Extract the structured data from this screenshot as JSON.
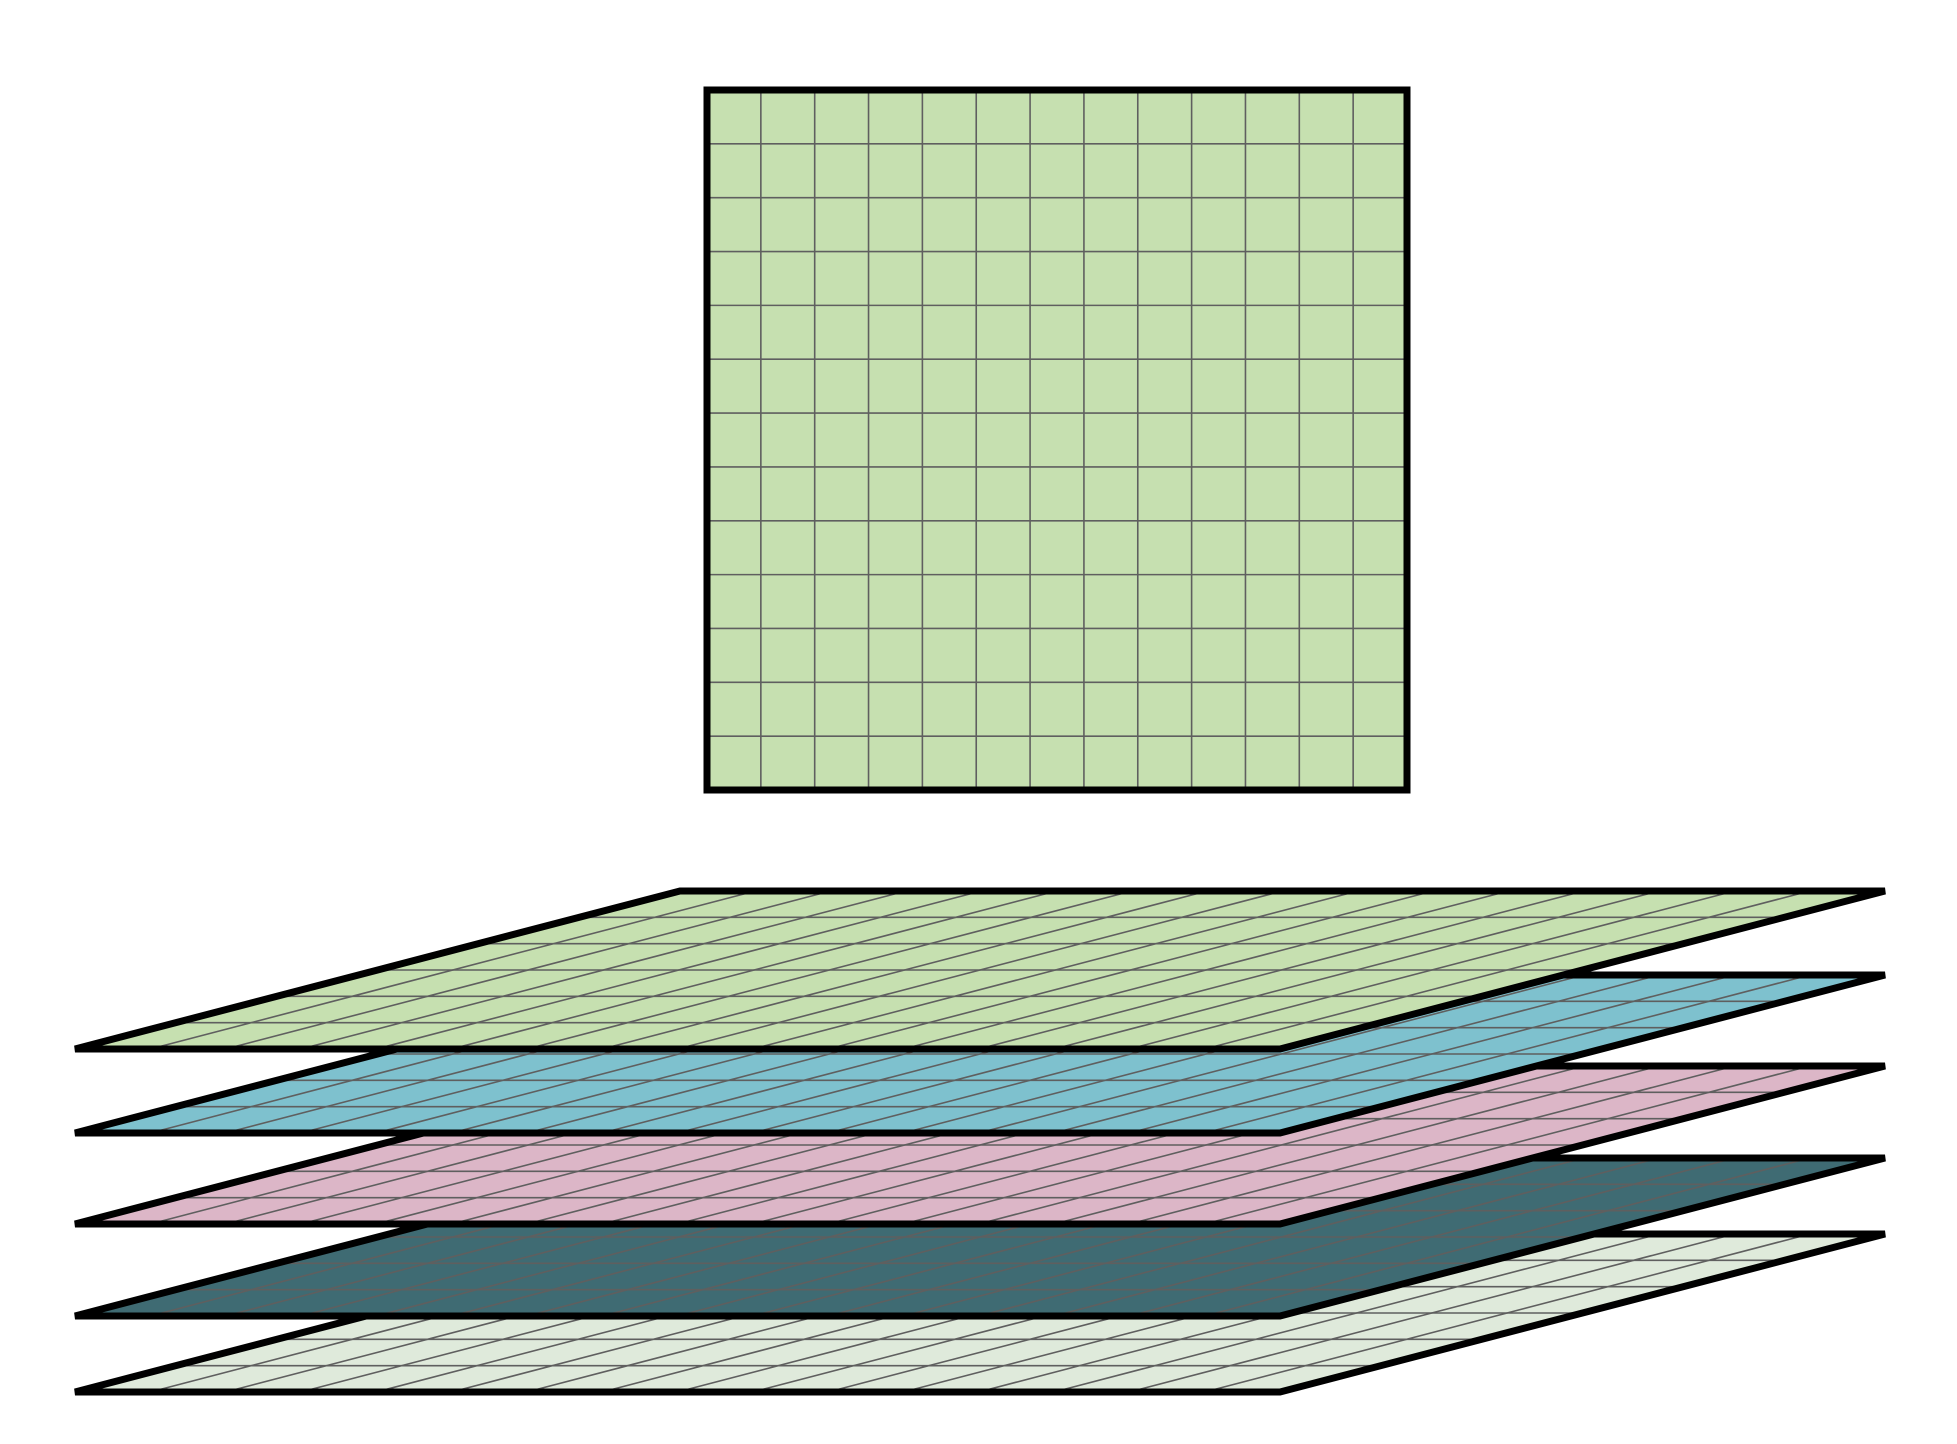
{
  "diagram": {
    "top_grid": {
      "fill": "#c6e0b0",
      "rows": 13,
      "cols": 13
    },
    "layers": [
      {
        "fill": "#dfeadb",
        "rows": 6,
        "cols": 16
      },
      {
        "fill": "#3f6b73",
        "rows": 6,
        "cols": 16
      },
      {
        "fill": "#dcb6c7",
        "rows": 6,
        "cols": 16
      },
      {
        "fill": "#7ec1ce",
        "rows": 6,
        "cols": 16
      },
      {
        "fill": "#c6e0b0",
        "rows": 6,
        "cols": 16
      }
    ],
    "outline_color": "#000000",
    "grid_line_color": "#5f5f5f"
  }
}
